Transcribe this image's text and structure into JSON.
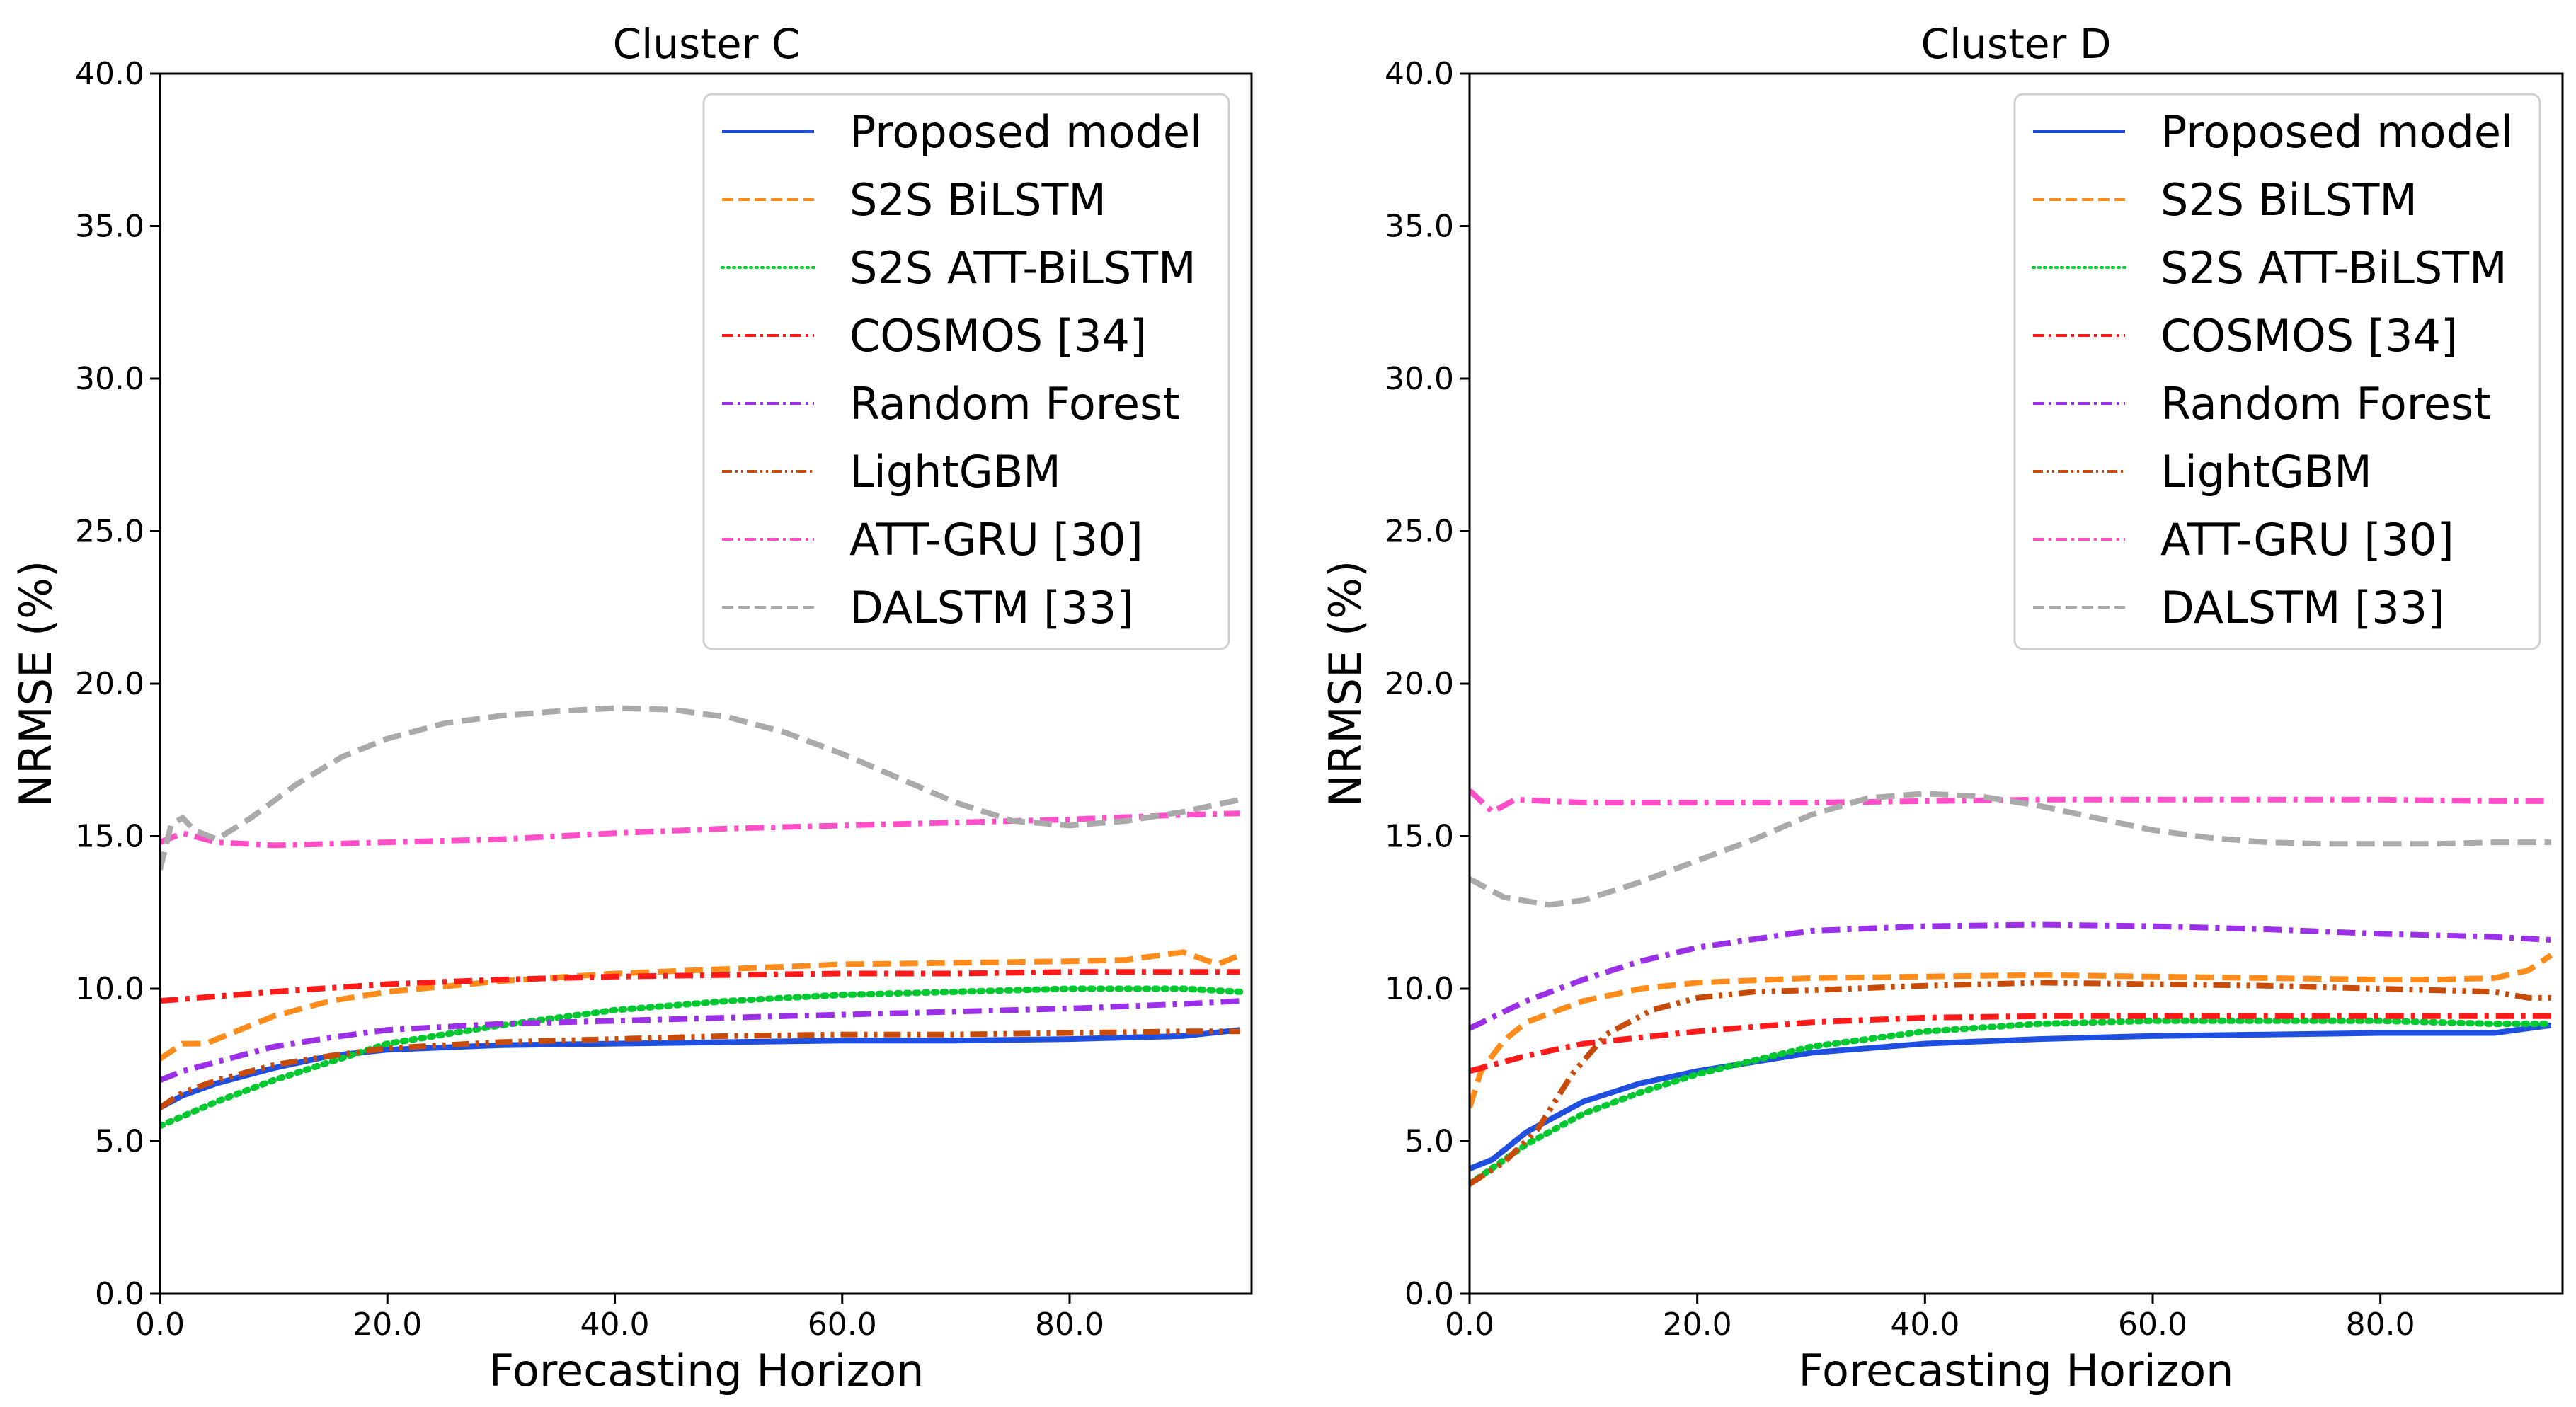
{
  "chart_data": [
    {
      "type": "line",
      "title": "Cluster C",
      "xlabel": "Forecasting Horizon",
      "ylabel": "NRMSE (%)",
      "xlim": [
        0,
        96
      ],
      "ylim": [
        0,
        40
      ],
      "xticks": [
        0,
        20,
        40,
        60,
        80
      ],
      "xtick_labels": [
        "0.0",
        "20.0",
        "40.0",
        "60.0",
        "80.0"
      ],
      "yticks": [
        0,
        5,
        10,
        15,
        20,
        25,
        30,
        35,
        40
      ],
      "ytick_labels": [
        "0.0",
        "5.0",
        "10.0",
        "15.0",
        "20.0",
        "25.0",
        "30.0",
        "35.0",
        "40.0"
      ],
      "legend_position": "top-right",
      "series": [
        {
          "name": "Proposed model",
          "style": "solid",
          "color": "#1f4fe0",
          "x": [
            0,
            2,
            5,
            10,
            15,
            20,
            30,
            40,
            50,
            60,
            70,
            80,
            90,
            95
          ],
          "y": [
            6.1,
            6.5,
            6.9,
            7.4,
            7.8,
            8.0,
            8.15,
            8.2,
            8.25,
            8.3,
            8.3,
            8.35,
            8.45,
            8.65
          ]
        },
        {
          "name": "S2S BiLSTM",
          "style": "dashed",
          "color": "#ff8c1a",
          "x": [
            0,
            2,
            4,
            6,
            10,
            15,
            20,
            30,
            40,
            50,
            60,
            70,
            80,
            85,
            90,
            93,
            95
          ],
          "y": [
            7.7,
            8.2,
            8.2,
            8.5,
            9.1,
            9.6,
            9.9,
            10.25,
            10.5,
            10.65,
            10.8,
            10.85,
            10.9,
            10.95,
            11.2,
            10.8,
            11.1
          ]
        },
        {
          "name": "S2S ATT-BiLSTM",
          "style": "dotted",
          "color": "#00c82f",
          "x": [
            0,
            5,
            10,
            15,
            20,
            30,
            40,
            50,
            60,
            70,
            80,
            90,
            95
          ],
          "y": [
            5.5,
            6.3,
            7.0,
            7.6,
            8.2,
            8.8,
            9.3,
            9.6,
            9.8,
            9.9,
            10.0,
            10.0,
            9.9
          ]
        },
        {
          "name": "COSMOS [34]",
          "style": "dashdot",
          "color": "#ff1a1a",
          "x": [
            0,
            10,
            20,
            30,
            40,
            50,
            60,
            70,
            80,
            90,
            95
          ],
          "y": [
            9.6,
            9.9,
            10.15,
            10.3,
            10.4,
            10.45,
            10.5,
            10.5,
            10.55,
            10.55,
            10.55
          ]
        },
        {
          "name": "Random Forest",
          "style": "dashdot",
          "color": "#9b30e8",
          "x": [
            0,
            2,
            5,
            10,
            15,
            20,
            30,
            40,
            50,
            60,
            70,
            80,
            90,
            95
          ],
          "y": [
            7.0,
            7.3,
            7.6,
            8.1,
            8.4,
            8.65,
            8.85,
            8.95,
            9.05,
            9.15,
            9.25,
            9.35,
            9.5,
            9.6
          ]
        },
        {
          "name": "LightGBM",
          "style": "dashdotdot",
          "color": "#c84b0a",
          "x": [
            0,
            2,
            5,
            10,
            15,
            20,
            30,
            40,
            50,
            60,
            70,
            80,
            90,
            95
          ],
          "y": [
            6.1,
            6.6,
            7.0,
            7.5,
            7.8,
            8.05,
            8.25,
            8.35,
            8.45,
            8.5,
            8.5,
            8.55,
            8.6,
            8.6
          ]
        },
        {
          "name": "ATT-GRU [30]",
          "style": "dashdot",
          "color": "#ff4fc8",
          "x": [
            0,
            2,
            5,
            10,
            20,
            30,
            40,
            50,
            60,
            70,
            80,
            90,
            95
          ],
          "y": [
            14.8,
            15.1,
            14.8,
            14.7,
            14.8,
            14.9,
            15.1,
            15.25,
            15.35,
            15.45,
            15.55,
            15.7,
            15.75
          ]
        },
        {
          "name": "DALSTM [33]",
          "style": "dashed",
          "color": "#aaaaaa",
          "x": [
            0,
            1,
            2,
            3,
            5,
            8,
            12,
            16,
            20,
            25,
            30,
            35,
            40,
            45,
            50,
            55,
            60,
            65,
            70,
            75,
            80,
            85,
            90,
            95
          ],
          "y": [
            13.9,
            15.4,
            15.6,
            15.2,
            14.9,
            15.6,
            16.7,
            17.6,
            18.2,
            18.7,
            18.95,
            19.1,
            19.2,
            19.15,
            18.9,
            18.4,
            17.7,
            16.9,
            16.1,
            15.5,
            15.35,
            15.5,
            15.8,
            16.2
          ]
        }
      ]
    },
    {
      "type": "line",
      "title": "Cluster D",
      "xlabel": "Forecasting Horizon",
      "ylabel": "NRMSE (%)",
      "xlim": [
        0,
        96
      ],
      "ylim": [
        0,
        40
      ],
      "xticks": [
        0,
        20,
        40,
        60,
        80
      ],
      "xtick_labels": [
        "0.0",
        "20.0",
        "40.0",
        "60.0",
        "80.0"
      ],
      "yticks": [
        0,
        5,
        10,
        15,
        20,
        25,
        30,
        35,
        40
      ],
      "ytick_labels": [
        "0.0",
        "5.0",
        "10.0",
        "15.0",
        "20.0",
        "25.0",
        "30.0",
        "35.0",
        "40.0"
      ],
      "legend_position": "top-right",
      "series": [
        {
          "name": "Proposed model",
          "style": "solid",
          "color": "#1f4fe0",
          "x": [
            0,
            2,
            5,
            10,
            15,
            20,
            30,
            40,
            50,
            60,
            70,
            80,
            90,
            95
          ],
          "y": [
            4.1,
            4.4,
            5.3,
            6.3,
            6.9,
            7.3,
            7.9,
            8.2,
            8.35,
            8.45,
            8.5,
            8.55,
            8.55,
            8.8
          ]
        },
        {
          "name": "S2S BiLSTM",
          "style": "dashed",
          "color": "#ff8c1a",
          "x": [
            0,
            1,
            3,
            5,
            10,
            15,
            20,
            30,
            40,
            50,
            60,
            70,
            80,
            85,
            90,
            93,
            95
          ],
          "y": [
            6.1,
            7.3,
            8.3,
            8.9,
            9.6,
            10.0,
            10.2,
            10.35,
            10.4,
            10.45,
            10.4,
            10.35,
            10.3,
            10.3,
            10.35,
            10.6,
            11.1
          ]
        },
        {
          "name": "S2S ATT-BiLSTM",
          "style": "dotted",
          "color": "#00c82f",
          "x": [
            0,
            5,
            10,
            15,
            20,
            30,
            40,
            50,
            60,
            70,
            80,
            90,
            95
          ],
          "y": [
            3.6,
            4.9,
            5.9,
            6.6,
            7.2,
            8.1,
            8.6,
            8.85,
            8.95,
            8.95,
            8.95,
            8.85,
            8.85
          ]
        },
        {
          "name": "COSMOS [34]",
          "style": "dashdot",
          "color": "#ff1a1a",
          "x": [
            0,
            5,
            10,
            20,
            30,
            40,
            50,
            60,
            70,
            80,
            90,
            95
          ],
          "y": [
            7.3,
            7.8,
            8.2,
            8.6,
            8.9,
            9.05,
            9.1,
            9.1,
            9.1,
            9.1,
            9.1,
            9.1
          ]
        },
        {
          "name": "Random Forest",
          "style": "dashdot",
          "color": "#9b30e8",
          "x": [
            0,
            5,
            10,
            15,
            20,
            30,
            40,
            50,
            60,
            70,
            80,
            90,
            95
          ],
          "y": [
            8.7,
            9.6,
            10.3,
            10.9,
            11.35,
            11.9,
            12.05,
            12.1,
            12.05,
            11.95,
            11.8,
            11.7,
            11.6
          ]
        },
        {
          "name": "LightGBM",
          "style": "dashdotdot",
          "color": "#c84b0a",
          "x": [
            0,
            3,
            6,
            9,
            12,
            16,
            20,
            25,
            30,
            40,
            50,
            60,
            70,
            80,
            90,
            93,
            95
          ],
          "y": [
            3.6,
            4.3,
            5.4,
            7.2,
            8.5,
            9.3,
            9.7,
            9.9,
            9.95,
            10.1,
            10.2,
            10.15,
            10.1,
            10.0,
            9.9,
            9.7,
            9.7
          ]
        },
        {
          "name": "ATT-GRU [30]",
          "style": "dashdot",
          "color": "#ff4fc8",
          "x": [
            0,
            2,
            4,
            10,
            20,
            30,
            40,
            50,
            60,
            70,
            80,
            90,
            95
          ],
          "y": [
            16.5,
            15.8,
            16.2,
            16.1,
            16.1,
            16.1,
            16.15,
            16.2,
            16.2,
            16.2,
            16.2,
            16.15,
            16.15
          ]
        },
        {
          "name": "DALSTM [33]",
          "style": "dashed",
          "color": "#aaaaaa",
          "x": [
            0,
            3,
            7,
            10,
            15,
            20,
            25,
            30,
            35,
            40,
            45,
            50,
            55,
            60,
            65,
            70,
            75,
            80,
            85,
            90,
            95
          ],
          "y": [
            13.6,
            13.0,
            12.75,
            12.9,
            13.5,
            14.2,
            14.9,
            15.7,
            16.25,
            16.4,
            16.3,
            16.0,
            15.6,
            15.2,
            14.95,
            14.8,
            14.75,
            14.75,
            14.75,
            14.8,
            14.8
          ]
        }
      ]
    }
  ]
}
